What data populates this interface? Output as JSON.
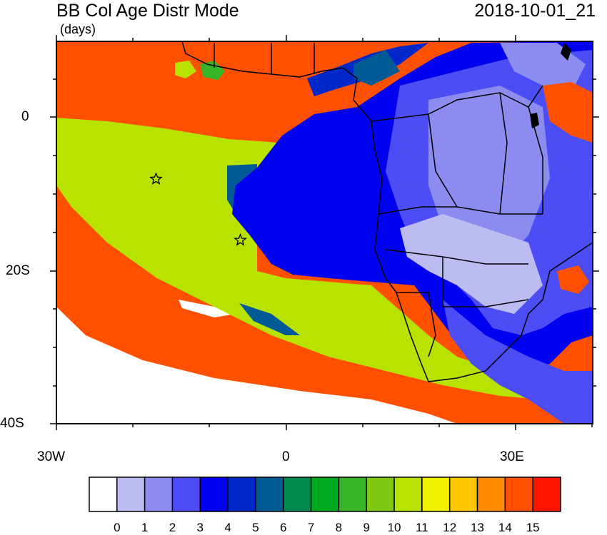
{
  "header": {
    "title": "BB Col Age Distr Mode",
    "units": "(days)",
    "timestamp": "2018-10-01_21"
  },
  "axes": {
    "lat_labels": [
      "0",
      "20S",
      "40S"
    ],
    "lon_labels": [
      "30W",
      "0",
      "30E"
    ],
    "lon_range_deg": [
      -30,
      40
    ],
    "lat_range_deg": [
      -40,
      10
    ]
  },
  "colorbar": {
    "labels": [
      "0",
      "1",
      "2",
      "3",
      "4",
      "5",
      "6",
      "7",
      "8",
      "9",
      "10",
      "11",
      "12",
      "13",
      "14",
      "15"
    ],
    "colors": [
      "#ffffff",
      "#bcbcf2",
      "#8c8cf0",
      "#4d4df6",
      "#0000f0",
      "#0028c8",
      "#005a96",
      "#008a50",
      "#00aa1e",
      "#38b428",
      "#80c814",
      "#b8e200",
      "#f0f000",
      "#ffc800",
      "#ff8c00",
      "#ff5000",
      "#ff1400"
    ]
  },
  "markers": [
    {
      "name": "star-marker",
      "lon": -17,
      "lat": -8
    },
    {
      "name": "star-marker",
      "lon": -6,
      "lat": -16
    }
  ]
}
